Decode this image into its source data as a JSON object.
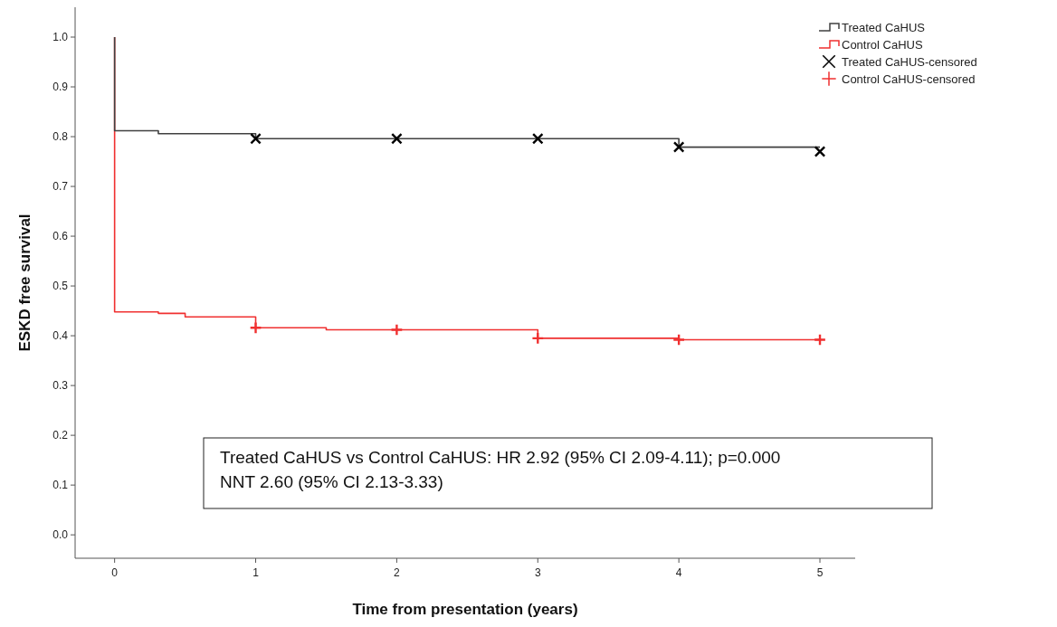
{
  "chart_data": {
    "type": "step",
    "xlabel": "Time from presentation (years)",
    "ylabel": "ESKD free survival",
    "xlim": [
      -0.28,
      5.25
    ],
    "xticks": [
      0,
      1,
      2,
      3,
      4,
      5
    ],
    "ylim": [
      -0.047,
      1.06
    ],
    "yticks": [
      {
        "value": 0,
        "label": "0.0"
      },
      {
        "value": 0.1,
        "label": "0.1"
      },
      {
        "value": 0.2,
        "label": "0.2"
      },
      {
        "value": 0.3,
        "label": "0.3"
      },
      {
        "value": 0.4,
        "label": "0.4"
      },
      {
        "value": 0.5,
        "label": "0.5"
      },
      {
        "value": 0.6,
        "label": "0.6"
      },
      {
        "value": 0.7,
        "label": "0.7"
      },
      {
        "value": 0.8,
        "label": "0.8"
      },
      {
        "value": 0.9,
        "label": "0.9"
      },
      {
        "value": 1,
        "label": "1.0"
      }
    ],
    "grid": false,
    "legend": "top right",
    "series": [
      {
        "name": "Treated CaHUS",
        "color": "#404040",
        "x": [
          0,
          0,
          0.31,
          1,
          4,
          5
        ],
        "values": [
          1,
          0.812,
          0.806,
          0.796,
          0.779,
          0.779
        ]
      },
      {
        "name": "Control CaHUS",
        "color": "#f03030",
        "x": [
          0,
          0,
          0.31,
          0.5,
          1,
          1.5,
          3,
          4,
          5
        ],
        "values": [
          1,
          0.448,
          0.445,
          0.438,
          0.416,
          0.412,
          0.395,
          0.392,
          0.392
        ]
      },
      {
        "name": "Treated CaHUS-censored",
        "type": "scatter",
        "marker": "cross",
        "color": "#000000",
        "x": [
          1,
          2,
          3,
          4,
          5
        ],
        "values": [
          0.796,
          0.796,
          0.796,
          0.779,
          0.77
        ]
      },
      {
        "name": "Control CaHUS-censored",
        "type": "scatter",
        "marker": "plus",
        "color": "#f03030",
        "x": [
          1,
          2,
          3,
          4,
          5
        ],
        "values": [
          0.416,
          0.412,
          0.395,
          0.392,
          0.392
        ]
      }
    ],
    "annotations": [
      "Treated CaHUS vs Control CaHUS: HR 2.92 (95% CI 2.09-4.11); p=0.000",
      "NNT 2.60 (95% CI 2.13-3.33)"
    ]
  }
}
